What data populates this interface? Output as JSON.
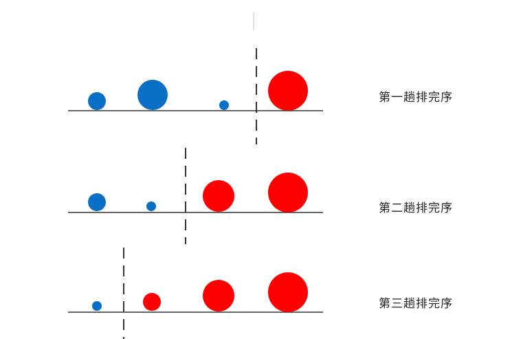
{
  "colors": {
    "sorted": "#ff0000",
    "unsorted": "#0a6fc6",
    "baseline": "#333333",
    "divider": "#333333"
  },
  "passes": [
    {
      "label": "第一趟排完序",
      "balls": [
        {
          "color": "unsorted",
          "size": 2
        },
        {
          "color": "unsorted",
          "size": 4
        },
        {
          "color": "unsorted",
          "size": 1
        },
        {
          "color": "sorted",
          "size": 5
        }
      ]
    },
    {
      "label": "第二趟排完序",
      "balls": [
        {
          "color": "unsorted",
          "size": 2
        },
        {
          "color": "unsorted",
          "size": 1
        },
        {
          "color": "sorted",
          "size": 4
        },
        {
          "color": "sorted",
          "size": 5
        }
      ]
    },
    {
      "label": "第三趟排完序",
      "balls": [
        {
          "color": "unsorted",
          "size": 1
        },
        {
          "color": "sorted",
          "size": 2
        },
        {
          "color": "sorted",
          "size": 4
        },
        {
          "color": "sorted",
          "size": 5
        }
      ]
    }
  ]
}
